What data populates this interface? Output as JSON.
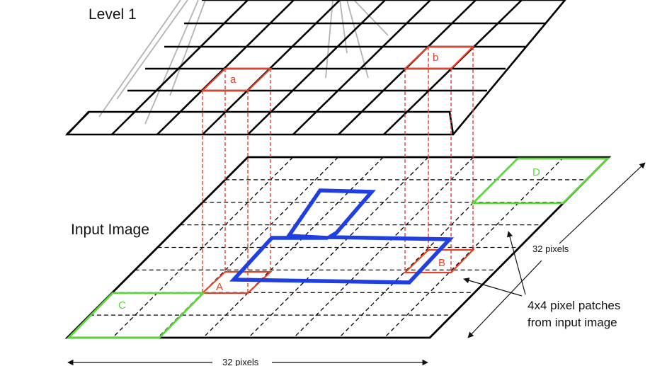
{
  "labels": {
    "level1": "Level 1",
    "input_image": "Input Image",
    "width": "32 pixels",
    "height": "32 pixels",
    "note_line1": "4x4 pixel patches",
    "note_line2": "from input image"
  },
  "patches": {
    "a": "a",
    "b": "b",
    "A": "A",
    "B": "B",
    "C": "C",
    "D": "D"
  },
  "colors": {
    "grid": "#000000",
    "attention_lines": "#b3b3b3",
    "correspondence": "#e0432b",
    "shape": "#1f3fe0",
    "corner_patches": "#5bd63c"
  }
}
